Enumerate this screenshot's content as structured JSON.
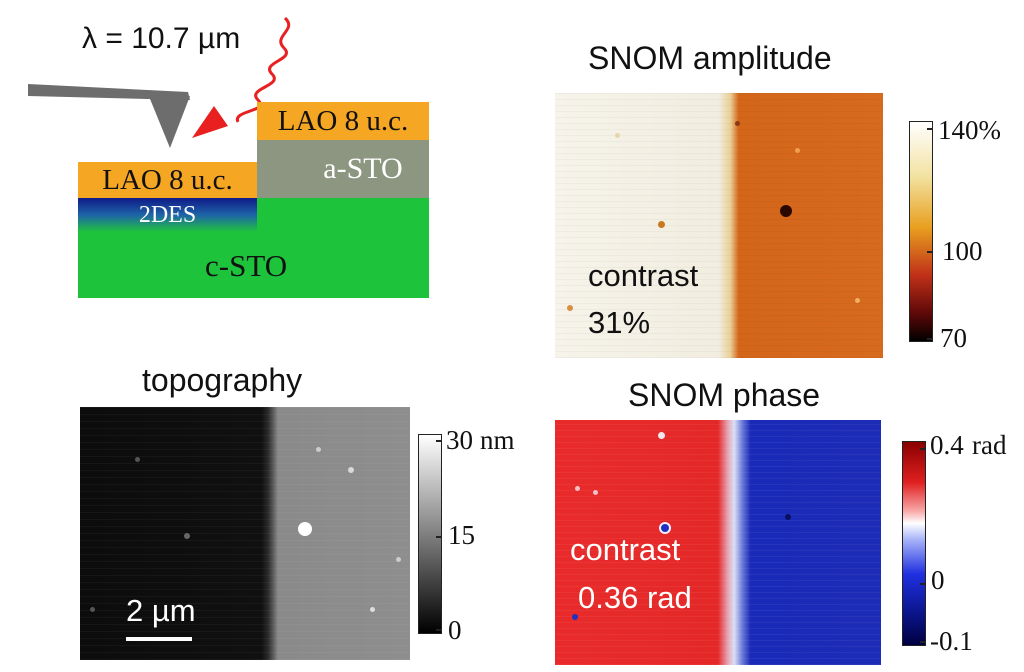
{
  "wavelength_label": "λ = 10.7 µm",
  "schematic": {
    "lao_left": "LAO 8 u.c.",
    "lao_right": "LAO 8 u.c.",
    "a_sto": "a-STO",
    "two_des": "2DES",
    "c_sto": "c-STO"
  },
  "amplitude": {
    "title": "SNOM amplitude",
    "contrast_label": "contrast",
    "contrast_value": "31%",
    "colorbar": {
      "max": "140%",
      "mid": "100",
      "min": "70"
    }
  },
  "topography": {
    "title": "topography",
    "scalebar": "2 µm",
    "colorbar": {
      "max": "30",
      "unit": "nm",
      "mid": "15",
      "min": "0"
    }
  },
  "phase": {
    "title": "SNOM phase",
    "contrast_label": "contrast",
    "contrast_value": "0.36 rad",
    "colorbar": {
      "max": "0.4",
      "unit": "rad",
      "mid": "0",
      "min": "-0.1"
    }
  },
  "colors": {
    "lao": "#f5a623",
    "a_sto": "#8c9680",
    "c_sto": "#1ec33c",
    "laser": "#e82020",
    "amp_bright": "#f7f4ec",
    "amp_dark": "#d6681c",
    "phase_red": "#e82828",
    "phase_blue": "#1a28b8"
  }
}
